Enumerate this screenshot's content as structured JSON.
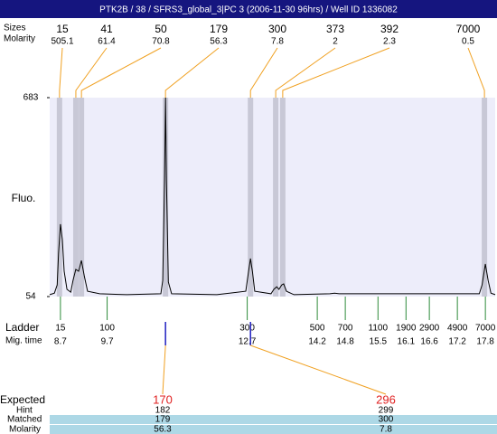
{
  "title": "PTK2B / 38 / SFRS3_global_3|PC 3 (2006-11-30 96hrs) / Well ID 1336082",
  "chart_data": {
    "type": "electropherogram",
    "y_label": "Fluo.",
    "ylim": [
      54,
      683
    ],
    "yticks": [
      54,
      683
    ],
    "xlim": [
      8.47,
      18.01
    ],
    "line_color": "#000000",
    "background_color": "#ededfa",
    "band_color": "#c8c8d6",
    "x": [
      8.47,
      8.57,
      8.63,
      8.66,
      8.7,
      8.74,
      8.78,
      8.84,
      8.92,
      8.97,
      9.03,
      9.09,
      9.15,
      9.21,
      9.28,
      9.54,
      10.12,
      10.85,
      10.89,
      10.93,
      10.95,
      10.97,
      11.01,
      11.08,
      12.05,
      12.67,
      12.73,
      12.77,
      12.81,
      12.86,
      13.21,
      13.27,
      13.33,
      13.38,
      13.44,
      13.48,
      13.54,
      13.7,
      14.47,
      14.57,
      14.67,
      17.67,
      17.73,
      17.8,
      17.86,
      17.92,
      18.01
    ],
    "values": [
      60,
      65,
      91,
      191,
      283,
      234,
      134,
      77,
      68,
      105,
      140,
      134,
      168,
      120,
      71,
      63,
      60,
      63,
      105,
      420,
      683,
      420,
      100,
      63,
      60,
      71,
      134,
      174,
      134,
      71,
      63,
      77,
      85,
      77,
      91,
      94,
      71,
      60,
      63,
      65,
      63,
      63,
      91,
      157,
      105,
      65,
      60
    ],
    "peaks": {
      "size_label": "Sizes",
      "molarity_label": "Molarity",
      "times": [
        8.68,
        9.03,
        9.15,
        10.95,
        12.77,
        13.31,
        13.46,
        17.78
      ],
      "sizes": [
        15,
        41,
        50,
        179,
        300,
        373,
        392,
        7000
      ],
      "molarity": [
        505.1,
        61.4,
        70.8,
        56.3,
        7.8,
        2,
        2.3,
        0.5
      ]
    },
    "ladder": {
      "label": "Ladder",
      "time_label": "Mig. time",
      "sizes": [
        15,
        100,
        300,
        500,
        700,
        1100,
        1900,
        2900,
        4900,
        7000
      ],
      "times": [
        8.7,
        9.7,
        12.7,
        14.2,
        14.8,
        15.5,
        16.1,
        16.6,
        17.2,
        17.8
      ]
    },
    "expected": {
      "expected_label": "Expected",
      "hint_label": "Hint",
      "matched_label": "Matched",
      "molarity_label": "Molarity",
      "expected": [
        170,
        296
      ],
      "hint": [
        182,
        299
      ],
      "matched": [
        179,
        300
      ],
      "molarity": [
        56.3,
        7.8
      ]
    }
  }
}
